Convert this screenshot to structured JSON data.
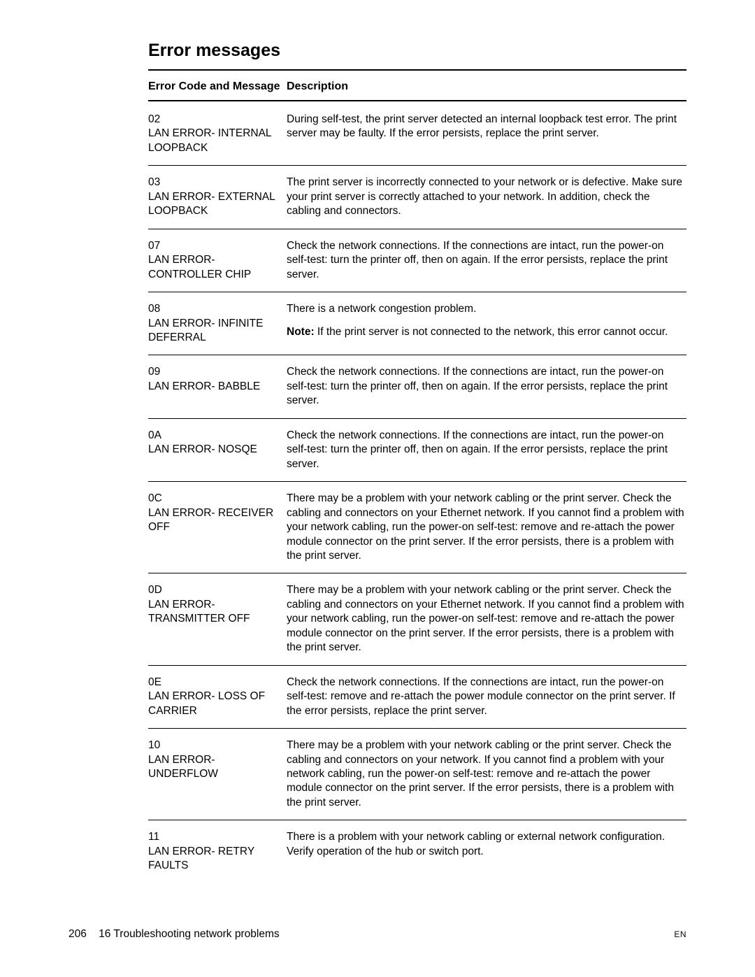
{
  "title": "Error messages",
  "headers": {
    "code": "Error Code and Message",
    "desc": "Description"
  },
  "entries": [
    {
      "code": "02",
      "msg": "LAN ERROR- INTERNAL LOOPBACK",
      "desc": [
        {
          "text": "During self-test, the print server detected an internal loopback test error. The print server may be faulty. If the error persists, replace the print server."
        }
      ]
    },
    {
      "code": "03",
      "msg": "LAN ERROR- EXTERNAL LOOPBACK",
      "desc": [
        {
          "text": "The print server is incorrectly connected to your network or is defective. Make sure your print server is correctly attached to your network. In addition, check the cabling and connectors."
        }
      ]
    },
    {
      "code": "07",
      "msg": "LAN ERROR- CONTROLLER CHIP",
      "desc": [
        {
          "text": "Check the network connections. If the connections are intact, run the power-on self-test: turn the printer off, then on again. If the error persists, replace the print server."
        }
      ]
    },
    {
      "code": "08",
      "msg": "LAN ERROR- INFINITE DEFERRAL",
      "desc": [
        {
          "text": "There is a network congestion problem."
        },
        {
          "note": "Note:",
          "text": " If the print server is not connected to the network, this error cannot occur."
        }
      ]
    },
    {
      "code": "09",
      "msg": "LAN ERROR- BABBLE",
      "desc": [
        {
          "text": "Check the network connections. If the connections are intact, run the power-on self-test: turn the printer off, then on again. If the error persists, replace the print server."
        }
      ]
    },
    {
      "code": "0A",
      "msg": "LAN ERROR- NOSQE",
      "desc": [
        {
          "text": "Check the network connections. If the connections are intact, run the power-on self-test: turn the printer off, then on again. If the error persists, replace the print server."
        }
      ]
    },
    {
      "code": "0C",
      "msg": "LAN ERROR- RECEIVER OFF",
      "desc": [
        {
          "text": "There may be a problem with your network cabling or the print server. Check the cabling and connectors on your Ethernet network. If you cannot find a problem with your network cabling, run the power-on self-test: remove and re-attach the power module connector on the print server. If the error persists, there is a problem with the print server."
        }
      ]
    },
    {
      "code": "0D",
      "msg": "LAN ERROR- TRANSMITTER OFF",
      "desc": [
        {
          "text": "There may be a problem with your network cabling or the print server. Check the cabling and connectors on your Ethernet network. If you cannot find a problem with your network cabling, run the power-on self-test: remove and re-attach the power module connector on the print server. If the error persists, there is a problem with the print server."
        }
      ]
    },
    {
      "code": "0E",
      "msg": "LAN ERROR- LOSS OF CARRIER",
      "desc": [
        {
          "text": "Check the network connections. If the connections are intact, run the power-on self-test: remove and re-attach the power module connector on the print server. If the error persists, replace the print server."
        }
      ]
    },
    {
      "code": "10",
      "msg": "LAN ERROR- UNDERFLOW",
      "desc": [
        {
          "text": "There may be a problem with your network cabling or the print server. Check the cabling and connectors on your network. If you cannot find a problem with your network cabling, run the power-on self-test: remove and re-attach the power module connector on the print server. If the error persists, there is a problem with the print server."
        }
      ]
    },
    {
      "code": "11",
      "msg": "LAN ERROR- RETRY FAULTS",
      "desc": [
        {
          "text": "There is a problem with your network cabling or external network configuration. Verify operation of the hub or switch port."
        }
      ]
    }
  ],
  "footer": {
    "page": "206",
    "chapter": "16 Troubleshooting network problems",
    "lang": "EN"
  }
}
